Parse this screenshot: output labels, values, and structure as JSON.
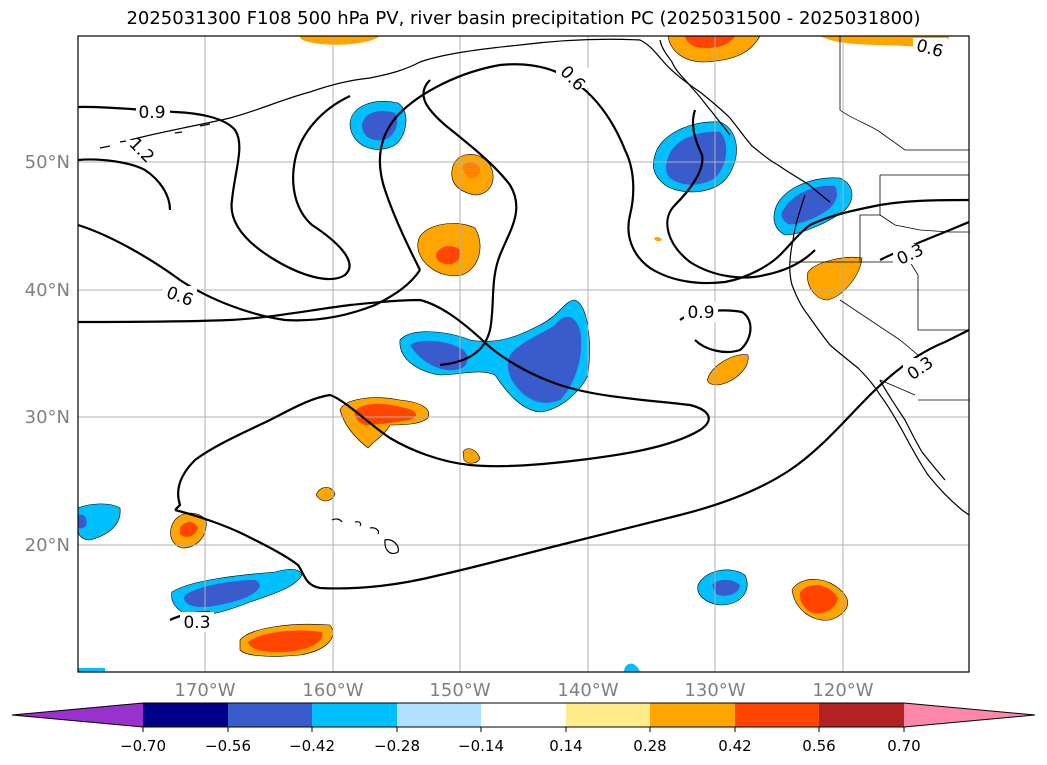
{
  "title": "2025031300 F108 500 hPa PV, river basin precipitation PC (2025031500 - 2025031800)",
  "lat_labels": [
    "50°N",
    "40°N",
    "30°N",
    "20°N"
  ],
  "lon_labels": [
    "170°W",
    "160°W",
    "150°W",
    "140°W",
    "130°W",
    "120°W"
  ],
  "contour_labels": [
    "0.9",
    "1.2",
    "0.6",
    "0.6",
    "0.6",
    "0.9",
    "0.3",
    "0.3",
    "0.3"
  ],
  "colorbar": {
    "ticks": [
      "−0.70",
      "−0.56",
      "−0.42",
      "−0.28",
      "−0.14",
      "0.14",
      "0.28",
      "0.42",
      "0.56",
      "0.70"
    ],
    "colors": [
      "#9932cc",
      "#00008b",
      "#3a5bcc",
      "#00bfff",
      "#b0e2ff",
      "#ffffff",
      "#ffec8b",
      "#ffa500",
      "#ff4500",
      "#b22222",
      "#ff88aa"
    ]
  },
  "palette": {
    "strong_negative": "#3a5bcc",
    "negative": "#00bfff",
    "weak_negative": "#b0e2ff",
    "weak_positive": "#ffec8b",
    "positive": "#ffa500",
    "strong_positive": "#ff4500"
  }
}
